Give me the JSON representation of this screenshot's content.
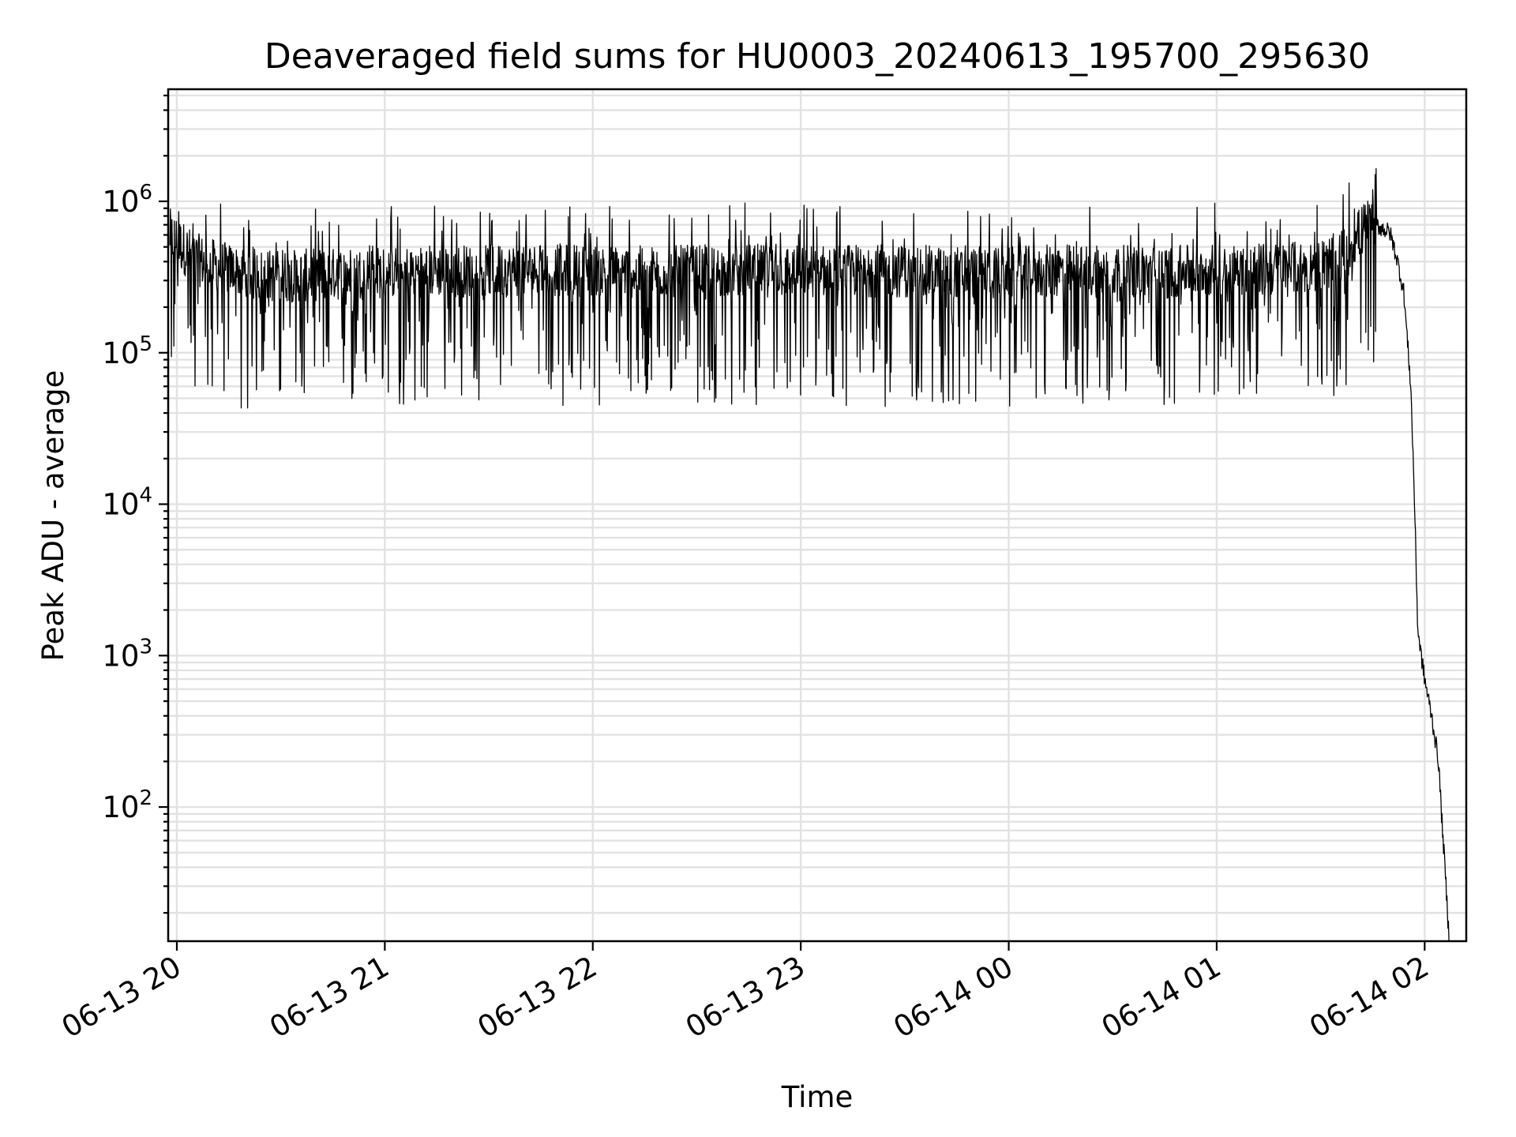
{
  "chart_data": {
    "type": "line",
    "title": "Deaveraged field sums for HU0003_20240613_195700_295630",
    "xlabel": "Time",
    "ylabel": "Peak ADU - average",
    "yscale": "log",
    "ylim": [
      13,
      5500000
    ],
    "xlim": [
      "2024-06-13 19:57:30",
      "2024-06-14 02:12:00"
    ],
    "grid": true,
    "x_ticks": [
      {
        "value": "2024-06-13 20:00",
        "label": "06-13 20"
      },
      {
        "value": "2024-06-13 21:00",
        "label": "06-13 21"
      },
      {
        "value": "2024-06-13 22:00",
        "label": "06-13 22"
      },
      {
        "value": "2024-06-13 23:00",
        "label": "06-13 23"
      },
      {
        "value": "2024-06-14 00:00",
        "label": "06-14 00"
      },
      {
        "value": "2024-06-14 01:00",
        "label": "06-14 01"
      },
      {
        "value": "2024-06-14 02:00",
        "label": "06-14 02"
      }
    ],
    "y_ticks": [
      {
        "value": 100,
        "base": "10",
        "exp": "2"
      },
      {
        "value": 1000,
        "base": "10",
        "exp": "3"
      },
      {
        "value": 10000,
        "base": "10",
        "exp": "4"
      },
      {
        "value": 100000,
        "base": "10",
        "exp": "5"
      },
      {
        "value": 1000000,
        "base": "10",
        "exp": "6"
      }
    ],
    "series": [
      {
        "color": "#000000",
        "x": [
          "2024-06-13 19:58",
          "2024-06-13 20:05",
          "2024-06-13 20:10",
          "2024-06-13 20:20",
          "2024-06-13 20:30",
          "2024-06-13 20:45",
          "2024-06-13 21:00",
          "2024-06-13 21:15",
          "2024-06-13 21:30",
          "2024-06-13 21:45",
          "2024-06-13 22:00",
          "2024-06-13 22:15",
          "2024-06-13 22:30",
          "2024-06-13 22:45",
          "2024-06-13 23:00",
          "2024-06-13 23:15",
          "2024-06-13 23:30",
          "2024-06-13 23:45",
          "2024-06-14 00:00",
          "2024-06-14 00:15",
          "2024-06-14 00:30",
          "2024-06-14 00:45",
          "2024-06-14 01:00",
          "2024-06-14 01:15",
          "2024-06-14 01:30",
          "2024-06-14 01:37",
          "2024-06-14 01:42",
          "2024-06-14 01:46",
          "2024-06-14 01:50",
          "2024-06-14 01:52",
          "2024-06-14 01:54",
          "2024-06-14 01:56",
          "2024-06-14 01:57",
          "2024-06-14 01:58",
          "2024-06-14 01:59",
          "2024-06-14 02:00",
          "2024-06-14 02:02",
          "2024-06-14 02:04",
          "2024-06-14 02:05",
          "2024-06-14 02:06",
          "2024-06-14 02:07"
        ],
        "y": [
          600000,
          420000,
          380000,
          330000,
          320000,
          330000,
          340000,
          350000,
          345000,
          355000,
          350000,
          340000,
          345000,
          350000,
          345000,
          350000,
          345000,
          340000,
          335000,
          350000,
          345000,
          340000,
          350000,
          355000,
          370000,
          450000,
          650000,
          700000,
          620000,
          420000,
          250000,
          60000,
          12000,
          1500,
          1000,
          700,
          400,
          200,
          80,
          35,
          14
        ]
      }
    ],
    "noise_lower_floor": 20000,
    "noise_upper_peak": 3000000
  }
}
